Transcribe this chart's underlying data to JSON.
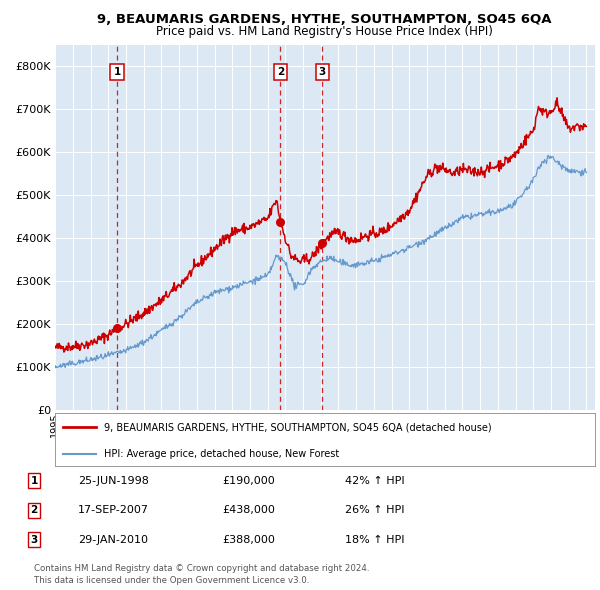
{
  "title1": "9, BEAUMARIS GARDENS, HYTHE, SOUTHAMPTON, SO45 6QA",
  "title2": "Price paid vs. HM Land Registry's House Price Index (HPI)",
  "plot_bg": "#dce9f5",
  "fig_bg": "#ffffff",
  "red_color": "#cc0000",
  "blue_color": "#6699cc",
  "ylim": [
    0,
    850000
  ],
  "yticks": [
    0,
    100000,
    200000,
    300000,
    400000,
    500000,
    600000,
    700000,
    800000
  ],
  "ytick_labels": [
    "£0",
    "£100K",
    "£200K",
    "£300K",
    "£400K",
    "£500K",
    "£600K",
    "£700K",
    "£800K"
  ],
  "xlim_start": 1995,
  "xlim_end": 2025.5,
  "transactions": [
    {
      "label": "1",
      "date": 1998.49,
      "price": 190000
    },
    {
      "label": "2",
      "date": 2007.72,
      "price": 438000
    },
    {
      "label": "3",
      "date": 2010.08,
      "price": 388000
    }
  ],
  "legend_line1": "9, BEAUMARIS GARDENS, HYTHE, SOUTHAMPTON, SO45 6QA (detached house)",
  "legend_line2": "HPI: Average price, detached house, New Forest",
  "table_rows": [
    {
      "num": "1",
      "date": "25-JUN-1998",
      "price": "£190,000",
      "hpi": "42% ↑ HPI"
    },
    {
      "num": "2",
      "date": "17-SEP-2007",
      "price": "£438,000",
      "hpi": "26% ↑ HPI"
    },
    {
      "num": "3",
      "date": "29-JAN-2010",
      "price": "£388,000",
      "hpi": "18% ↑ HPI"
    }
  ],
  "footer": "Contains HM Land Registry data © Crown copyright and database right 2024.\nThis data is licensed under the Open Government Licence v3.0."
}
